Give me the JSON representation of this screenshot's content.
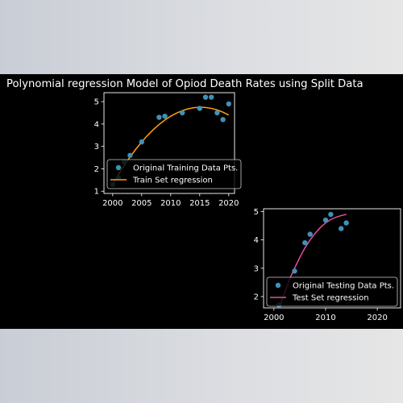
{
  "figure": {
    "title": "Polynomial regression Model of Opiod Death Rates using Split Data"
  },
  "chart_data": [
    {
      "type": "scatter",
      "x_ticks": [
        2000,
        2005,
        2010,
        2015,
        2020
      ],
      "y_ticks": [
        1,
        2,
        3,
        4,
        5
      ],
      "xlim": [
        1998.5,
        2021.0
      ],
      "ylim": [
        0.9,
        5.4
      ],
      "series": [
        {
          "name": "Original Training Data Pts.",
          "kind": "scatter",
          "color": "#3f91b6",
          "x": [
            2000,
            2001,
            2002,
            2003,
            2005,
            2008,
            2009,
            2012,
            2015,
            2016,
            2017,
            2018,
            2019,
            2020
          ],
          "y": [
            1.3,
            1.6,
            2.3,
            2.6,
            3.2,
            4.3,
            4.35,
            4.5,
            4.7,
            5.2,
            5.2,
            4.5,
            4.2,
            4.9
          ]
        },
        {
          "name": "Train Set regression",
          "kind": "line",
          "color": "#ff9e0f",
          "x": [
            2000,
            2001,
            2002,
            2003,
            2004,
            2005,
            2006,
            2007,
            2008,
            2009,
            2010,
            2011,
            2012,
            2013,
            2014,
            2015,
            2016,
            2017,
            2018,
            2019,
            2020
          ],
          "y": [
            1.3,
            1.74,
            2.15,
            2.53,
            2.88,
            3.2,
            3.49,
            3.75,
            3.98,
            4.18,
            4.35,
            4.49,
            4.6,
            4.68,
            4.73,
            4.75,
            4.74,
            4.7,
            4.63,
            4.53,
            4.4
          ]
        }
      ],
      "legend": {
        "placement": "lower-left",
        "entries": [
          "Original Training Data Pts.",
          "Train Set regression"
        ]
      }
    },
    {
      "type": "scatter",
      "x_ticks": [
        2000,
        2010,
        2020
      ],
      "y_ticks": [
        2,
        3,
        4,
        5
      ],
      "xlim": [
        1998.0,
        2024.5
      ],
      "ylim": [
        1.6,
        5.1
      ],
      "series": [
        {
          "name": "Original Testing Data Pts.",
          "kind": "scatter",
          "color": "#3f91b6",
          "x": [
            2001,
            2004,
            2006,
            2007,
            2010,
            2011,
            2013,
            2014
          ],
          "y": [
            1.7,
            2.9,
            3.9,
            4.2,
            4.7,
            4.9,
            4.4,
            4.6
          ]
        },
        {
          "name": "Test Set regression",
          "kind": "line",
          "color": "#e64e9a",
          "x": [
            2001,
            2002,
            2003,
            2004,
            2005,
            2006,
            2007,
            2008,
            2009,
            2010,
            2011,
            2012,
            2013,
            2014
          ],
          "y": [
            1.6,
            2.1,
            2.6,
            3.0,
            3.38,
            3.72,
            4.0,
            4.24,
            4.44,
            4.6,
            4.72,
            4.8,
            4.86,
            4.9
          ]
        }
      ],
      "legend": {
        "placement": "lower-left",
        "entries": [
          "Original Testing Data Pts.",
          "Test Set regression"
        ]
      }
    }
  ]
}
